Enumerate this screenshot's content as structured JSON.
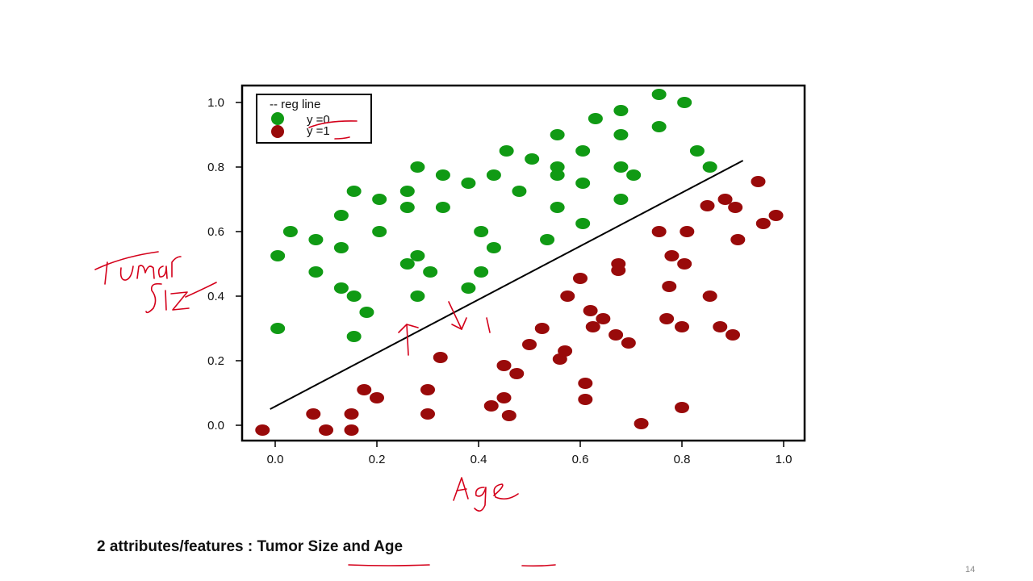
{
  "slide": {
    "caption_prefix": "2 attributes/features : ",
    "caption_feature_1": "Tumor Size",
    "caption_joiner": " and ",
    "caption_feature_2": "Age",
    "page_number": "14"
  },
  "colors": {
    "class_0": "#109a14",
    "class_1": "#990a0a",
    "line": "#000000",
    "annotation": "#d4001a"
  },
  "annotations": {
    "y_axis_handwritten": "Tumor Size",
    "x_axis_handwritten": "Age",
    "icons": [
      "arrow-up-icon",
      "arrow-down-icon"
    ],
    "marks": [
      "1"
    ]
  },
  "chart_data": {
    "type": "scatter",
    "title": "",
    "xlabel": "",
    "ylabel": "",
    "xlim": [
      -0.05,
      1.05
    ],
    "ylim": [
      -0.05,
      1.05
    ],
    "x_ticks": [
      "0.0",
      "0.2",
      "0.4",
      "0.6",
      "0.8",
      "1.0"
    ],
    "y_ticks": [
      "0.0",
      "0.2",
      "0.4",
      "0.6",
      "0.8",
      "1.0"
    ],
    "grid": false,
    "legend_position": "top-left",
    "legend": [
      "-- reg line",
      "y =0",
      "y =1"
    ],
    "reg_line": {
      "x": [
        -0.01,
        0.92
      ],
      "y": [
        0.05,
        0.82
      ]
    },
    "series": [
      {
        "name": "y =0",
        "points": [
          [
            0.005,
            0.525
          ],
          [
            0.005,
            0.3
          ],
          [
            0.03,
            0.6
          ],
          [
            0.08,
            0.575
          ],
          [
            0.08,
            0.475
          ],
          [
            0.13,
            0.65
          ],
          [
            0.13,
            0.55
          ],
          [
            0.13,
            0.425
          ],
          [
            0.155,
            0.725
          ],
          [
            0.155,
            0.4
          ],
          [
            0.155,
            0.275
          ],
          [
            0.18,
            0.35
          ],
          [
            0.205,
            0.7
          ],
          [
            0.205,
            0.6
          ],
          [
            0.26,
            0.725
          ],
          [
            0.26,
            0.675
          ],
          [
            0.26,
            0.5
          ],
          [
            0.28,
            0.8
          ],
          [
            0.28,
            0.525
          ],
          [
            0.28,
            0.4
          ],
          [
            0.305,
            0.475
          ],
          [
            0.33,
            0.775
          ],
          [
            0.33,
            0.675
          ],
          [
            0.38,
            0.75
          ],
          [
            0.38,
            0.425
          ],
          [
            0.405,
            0.6
          ],
          [
            0.405,
            0.475
          ],
          [
            0.43,
            0.775
          ],
          [
            0.43,
            0.55
          ],
          [
            0.455,
            0.85
          ],
          [
            0.48,
            0.725
          ],
          [
            0.505,
            0.825
          ],
          [
            0.535,
            0.575
          ],
          [
            0.555,
            0.9
          ],
          [
            0.555,
            0.8
          ],
          [
            0.555,
            0.775
          ],
          [
            0.555,
            0.675
          ],
          [
            0.605,
            0.85
          ],
          [
            0.605,
            0.75
          ],
          [
            0.605,
            0.625
          ],
          [
            0.63,
            0.95
          ],
          [
            0.68,
            0.975
          ],
          [
            0.68,
            0.9
          ],
          [
            0.68,
            0.8
          ],
          [
            0.68,
            0.7
          ],
          [
            0.705,
            0.775
          ],
          [
            0.755,
            1.025
          ],
          [
            0.755,
            0.925
          ],
          [
            0.805,
            1.0
          ],
          [
            0.83,
            0.85
          ],
          [
            0.855,
            0.8
          ]
        ]
      },
      {
        "name": "y =1",
        "points": [
          [
            -0.025,
            -0.015
          ],
          [
            0.075,
            0.035
          ],
          [
            0.1,
            -0.015
          ],
          [
            0.15,
            0.035
          ],
          [
            0.15,
            -0.015
          ],
          [
            0.175,
            0.11
          ],
          [
            0.2,
            0.085
          ],
          [
            0.3,
            0.11
          ],
          [
            0.3,
            0.035
          ],
          [
            0.325,
            0.21
          ],
          [
            0.425,
            0.06
          ],
          [
            0.45,
            0.185
          ],
          [
            0.45,
            0.085
          ],
          [
            0.46,
            0.03
          ],
          [
            0.475,
            0.16
          ],
          [
            0.5,
            0.25
          ],
          [
            0.525,
            0.3
          ],
          [
            0.56,
            0.205
          ],
          [
            0.57,
            0.23
          ],
          [
            0.575,
            0.4
          ],
          [
            0.6,
            0.455
          ],
          [
            0.61,
            0.13
          ],
          [
            0.61,
            0.08
          ],
          [
            0.62,
            0.355
          ],
          [
            0.625,
            0.305
          ],
          [
            0.645,
            0.33
          ],
          [
            0.67,
            0.28
          ],
          [
            0.675,
            0.5
          ],
          [
            0.675,
            0.48
          ],
          [
            0.695,
            0.255
          ],
          [
            0.72,
            0.005
          ],
          [
            0.755,
            0.6
          ],
          [
            0.77,
            0.33
          ],
          [
            0.775,
            0.43
          ],
          [
            0.78,
            0.525
          ],
          [
            0.8,
            0.305
          ],
          [
            0.8,
            0.055
          ],
          [
            0.805,
            0.5
          ],
          [
            0.81,
            0.6
          ],
          [
            0.85,
            0.68
          ],
          [
            0.855,
            0.4
          ],
          [
            0.875,
            0.305
          ],
          [
            0.885,
            0.7
          ],
          [
            0.9,
            0.28
          ],
          [
            0.905,
            0.675
          ],
          [
            0.91,
            0.575
          ],
          [
            0.95,
            0.755
          ],
          [
            0.96,
            0.625
          ],
          [
            0.985,
            0.65
          ]
        ]
      }
    ]
  }
}
